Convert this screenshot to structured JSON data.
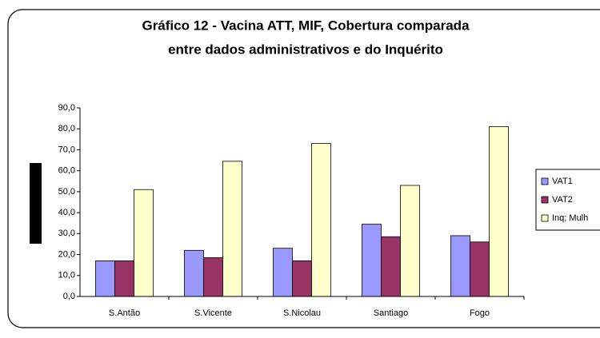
{
  "chart_data": {
    "type": "bar",
    "title": [
      "Gráfico 12 - Vacina ATT, MIF, Cobertura comparada",
      "entre dados administrativos e do Inquérito"
    ],
    "categories": [
      "S.Antão",
      "S.Vicente",
      "S.Nicolau",
      "Santiago",
      "Fogo"
    ],
    "series": [
      {
        "name": "VAT1",
        "color": "#9999ff",
        "values": [
          17,
          22,
          23,
          34.5,
          29
        ]
      },
      {
        "name": "VAT2",
        "color": "#993366",
        "values": [
          17,
          18.5,
          17,
          28.5,
          26
        ]
      },
      {
        "name": "Inq; Mulh",
        "color": "#ffffcc",
        "values": [
          51,
          64.5,
          73,
          53,
          81
        ]
      }
    ],
    "ylim": [
      0,
      90
    ],
    "yticks": [
      {
        "value": 0,
        "label": "0,0"
      },
      {
        "value": 10,
        "label": "10,0"
      },
      {
        "value": 20,
        "label": "20,0"
      },
      {
        "value": 30,
        "label": "30,0"
      },
      {
        "value": 40,
        "label": "40,0"
      },
      {
        "value": 50,
        "label": "50,0"
      },
      {
        "value": 60,
        "label": "60,0"
      },
      {
        "value": 70,
        "label": "70,0"
      },
      {
        "value": 80,
        "label": "80,0"
      },
      {
        "value": 90,
        "label": "90,0"
      }
    ],
    "grid": false,
    "legend": "right"
  }
}
